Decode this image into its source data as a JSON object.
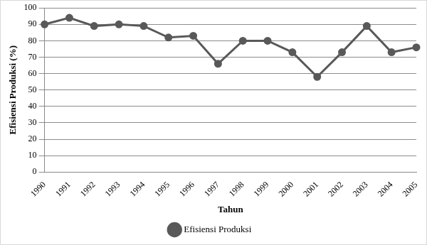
{
  "chart_data": {
    "type": "line",
    "x_label": "Tahun",
    "y_label": "Efisiensi Produksi (%)",
    "categories": [
      "1990",
      "1991",
      "1992",
      "1993",
      "1994",
      "1995",
      "1996",
      "1997",
      "1998",
      "1999",
      "2000",
      "2001",
      "2002",
      "2003",
      "2004",
      "2005"
    ],
    "series": [
      {
        "name": "Efisiensi Produksi",
        "color": "#595959",
        "marker": "circle",
        "values": [
          90,
          94,
          89,
          90,
          89,
          82,
          83,
          66,
          80,
          80,
          73,
          58,
          73,
          89,
          73,
          76
        ]
      }
    ],
    "ylim": [
      0,
      100
    ],
    "yticks": [
      0,
      10,
      20,
      30,
      40,
      50,
      60,
      70,
      80,
      90,
      100
    ],
    "grid": true,
    "legend": "bottom"
  }
}
